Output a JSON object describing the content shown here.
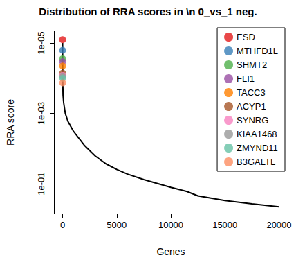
{
  "chart_data": {
    "type": "line",
    "title": "Distribution of RRA scores in \\n 0_vs_1 neg.",
    "x_label": "Genes",
    "y_label": "RRA score",
    "log": "y",
    "grid": false,
    "legend": "topright",
    "marker": "circle",
    "color": "#000000",
    "x": [
      0,
      10,
      40,
      100,
      250,
      500,
      1000,
      2000,
      3000,
      4000,
      5000,
      6000,
      7500,
      10000,
      11500,
      12500,
      15000,
      17500,
      20000
    ],
    "values": [
      1e-05,
      0.0001,
      0.0003,
      0.0005,
      0.001,
      0.0017,
      0.0032,
      0.008,
      0.016,
      0.027,
      0.039,
      0.053,
      0.076,
      0.126,
      0.166,
      0.22,
      0.3,
      0.37,
      0.45
    ],
    "xlim": [
      -800,
      20800
    ],
    "xticks": [
      0,
      5000,
      10000,
      15000,
      20000
    ],
    "ylim": [
      0.7,
      4.6e-06
    ],
    "yticks": [
      {
        "value": 1e-05,
        "label": "1e-05"
      },
      {
        "value": 0.001,
        "label": "1e-03"
      },
      {
        "value": 0.1,
        "label": "1e-01"
      }
    ],
    "series": [
      {
        "name": "ESD",
        "color": "#e41a1c",
        "type": "scatter",
        "x": [
          1
        ],
        "values": [
          8e-06
        ]
      },
      {
        "name": "MTHFD1L",
        "color": "#377eb8",
        "type": "scatter",
        "x": [
          2
        ],
        "values": [
          1.6e-05
        ]
      },
      {
        "name": "SHMT2",
        "color": "#4daf4a",
        "type": "scatter",
        "x": [
          3
        ],
        "values": [
          2.8e-05
        ]
      },
      {
        "name": "FLI1",
        "color": "#984ea3",
        "type": "scatter",
        "x": [
          4
        ],
        "values": [
          3.4e-05
        ]
      },
      {
        "name": "TACC3",
        "color": "#ff7f00",
        "type": "scatter",
        "x": [
          5
        ],
        "values": [
          4.5e-05
        ]
      },
      {
        "name": "ACYP1",
        "color": "#a65628",
        "type": "scatter",
        "x": [
          6
        ],
        "values": [
          7.2e-05
        ]
      },
      {
        "name": "SYNRG",
        "color": "#f781bf",
        "type": "scatter",
        "x": [
          7
        ],
        "values": [
          8.3e-05
        ]
      },
      {
        "name": "KIAA1468",
        "color": "#999999",
        "type": "scatter",
        "x": [
          8
        ],
        "values": [
          9e-05
        ]
      },
      {
        "name": "ZMYND11",
        "color": "#66c2a5",
        "type": "scatter",
        "x": [
          9
        ],
        "values": [
          0.0001
        ]
      },
      {
        "name": "B3GALTL",
        "color": "#fc8d62",
        "type": "scatter",
        "x": [
          10
        ],
        "values": [
          0.000135
        ]
      }
    ]
  }
}
